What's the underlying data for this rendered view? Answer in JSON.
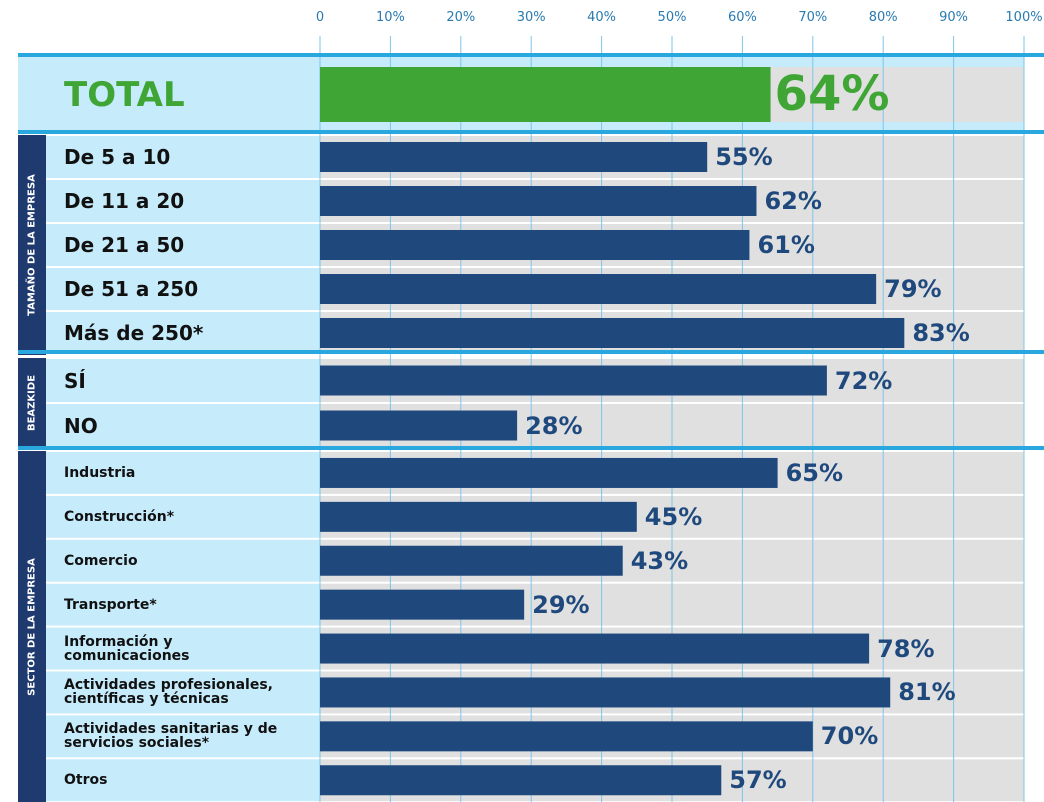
{
  "chart_data": {
    "type": "bar",
    "orientation": "horizontal",
    "xlim": [
      0,
      100
    ],
    "xticks": [
      0,
      {
        "value": 10,
        "label": "10%"
      },
      {
        "value": 20,
        "label": "20%"
      },
      {
        "value": 30,
        "label": "30%"
      },
      {
        "value": 40,
        "label": "40%"
      },
      {
        "value": 50,
        "label": "50%"
      },
      {
        "value": 60,
        "label": "60%"
      },
      {
        "value": 70,
        "label": "70%"
      },
      {
        "value": 80,
        "label": "80%"
      },
      {
        "value": 90,
        "label": "90%"
      },
      {
        "value": 100,
        "label": "100%"
      }
    ],
    "grid": true,
    "color": "#1f497d",
    "total": {
      "category": "TOTAL",
      "value": 64,
      "value_label": "64%",
      "color": "#3fa535"
    },
    "groups": [
      {
        "name": "TAMAÑO DE LA EMPRESA",
        "categories": [
          "De 5 a 10",
          "De 11 a 20",
          "De 21 a 50",
          "De 51 a 250",
          "Más de 250*"
        ],
        "values": [
          55,
          62,
          61,
          79,
          83
        ],
        "value_labels": [
          "55%",
          "62%",
          "61%",
          "79%",
          "83%"
        ]
      },
      {
        "name": "BEAZKIDE",
        "categories": [
          "SÍ",
          "NO"
        ],
        "values": [
          72,
          28
        ],
        "value_labels": [
          "72%",
          "28%"
        ]
      },
      {
        "name": "SECTOR DE LA EMPRESA",
        "categories": [
          "Industria",
          "Construcción*",
          "Comercio",
          "Transporte*",
          "Información y\ncomunicaciones",
          "Actividades profesionales,\ncientíficas y técnicas",
          "Actividades sanitarias y de\nservicios sociales*",
          "Otros"
        ],
        "values": [
          65,
          45,
          43,
          29,
          78,
          81,
          70,
          57
        ],
        "value_labels": [
          "65%",
          "45%",
          "43%",
          "29%",
          "78%",
          "81%",
          "70%",
          "57%"
        ]
      }
    ]
  }
}
